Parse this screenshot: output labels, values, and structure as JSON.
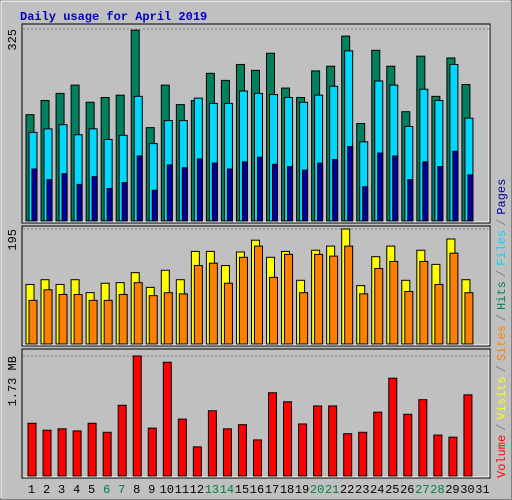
{
  "chart_data": [
    {
      "type": "bar",
      "title": "Daily usage for April 2019",
      "categories": [
        "1",
        "2",
        "3",
        "4",
        "5",
        "6",
        "7",
        "8",
        "9",
        "10",
        "11",
        "12",
        "13",
        "14",
        "15",
        "16",
        "17",
        "18",
        "19",
        "20",
        "21",
        "22",
        "23",
        "24",
        "25",
        "26",
        "27",
        "28",
        "29",
        "30",
        "31"
      ],
      "category_colors": [
        "#000000",
        "#000000",
        "#000000",
        "#000000",
        "#000000",
        "#008040",
        "#008040",
        "#000000",
        "#000000",
        "#000000",
        "#000000",
        "#000000",
        "#008040",
        "#008040",
        "#000000",
        "#000000",
        "#000000",
        "#000000",
        "#000000",
        "#008040",
        "#008040",
        "#000000",
        "#000000",
        "#000000",
        "#000000",
        "#000000",
        "#008040",
        "#008040",
        "#000000",
        "#000000",
        "#000000"
      ],
      "ylim": [
        0,
        325
      ],
      "yticks": [
        325
      ],
      "series": [
        {
          "name": "Hits",
          "color": "#00805c",
          "values": [
            180,
            204,
            216,
            230,
            201,
            209,
            213,
            323,
            158,
            230,
            197,
            204,
            250,
            238,
            265,
            255,
            284,
            225,
            209,
            254,
            262,
            313,
            165,
            289,
            262,
            185,
            279,
            211,
            276,
            231,
            null
          ]
        },
        {
          "name": "Files",
          "color": "#00d8ff",
          "values": [
            150,
            156,
            163,
            146,
            156,
            138,
            145,
            211,
            131,
            170,
            170,
            208,
            199,
            199,
            220,
            216,
            214,
            209,
            201,
            213,
            228,
            288,
            134,
            237,
            230,
            160,
            223,
            204,
            265,
            174,
            null
          ]
        },
        {
          "name": "Pages",
          "color": "#0000a0",
          "values": [
            88,
            70,
            80,
            62,
            75,
            55,
            65,
            110,
            52,
            95,
            90,
            105,
            98,
            88,
            100,
            108,
            96,
            92,
            86,
            98,
            104,
            126,
            58,
            115,
            110,
            70,
            100,
            92,
            118,
            78,
            null
          ]
        }
      ]
    },
    {
      "type": "bar",
      "ylim": [
        0,
        195
      ],
      "yticks": [
        195
      ],
      "series": [
        {
          "name": "Visits",
          "color": "#ffff00",
          "values": [
            101,
            109,
            101,
            109,
            87,
            103,
            104,
            121,
            96,
            125,
            109,
            157,
            157,
            133,
            156,
            176,
            147,
            157,
            108,
            159,
            166,
            195,
            99,
            148,
            166,
            108,
            159,
            135,
            178,
            109,
            null
          ]
        },
        {
          "name": "Sites",
          "color": "#ff8000",
          "values": [
            74,
            92,
            84,
            84,
            74,
            74,
            84,
            104,
            82,
            87,
            85,
            133,
            137,
            103,
            147,
            166,
            113,
            152,
            87,
            152,
            149,
            166,
            85,
            128,
            140,
            89,
            140,
            101,
            154,
            87,
            null
          ]
        }
      ]
    },
    {
      "type": "bar",
      "ylim": [
        0,
        1.73
      ],
      "yticks": [
        {
          "value": 1.73,
          "label": "1.73 MB"
        }
      ],
      "legend_separator": "/",
      "series": [
        {
          "name": "Volume",
          "color": "#ff0000",
          "values": [
            0.76,
            0.66,
            0.68,
            0.65,
            0.76,
            0.63,
            1.02,
            1.73,
            0.69,
            1.64,
            0.82,
            0.42,
            0.94,
            0.68,
            0.74,
            0.52,
            1.2,
            1.07,
            0.75,
            1.01,
            1.01,
            0.61,
            0.63,
            0.92,
            1.41,
            0.89,
            1.1,
            0.59,
            0.56,
            1.17,
            null
          ]
        }
      ]
    }
  ]
}
